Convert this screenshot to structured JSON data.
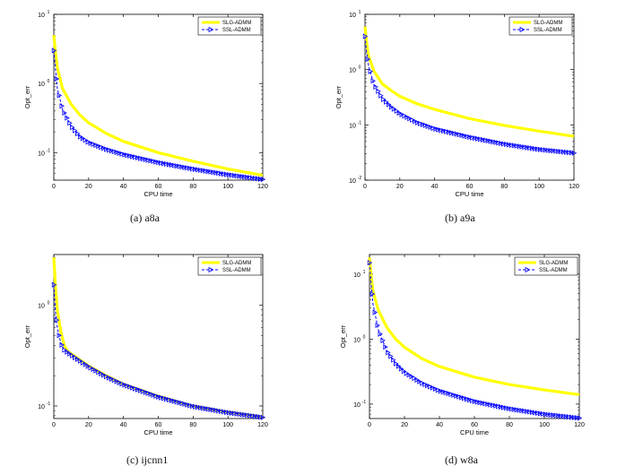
{
  "chart_data": [
    {
      "type": "line",
      "panel": "(a)",
      "caption": "(a)  a8a",
      "xlabel": "CPU time",
      "ylabel": "Opt_err",
      "yscale": "log",
      "xlim": [
        0,
        120
      ],
      "ylim": [
        0.04,
        10
      ],
      "xticks": [
        0,
        20,
        40,
        60,
        80,
        100,
        120
      ],
      "yticks": [
        0.1,
        1,
        10
      ],
      "ytick_labels": [
        [
          "10",
          "-1"
        ],
        [
          "10",
          "0"
        ],
        [
          "10",
          "1"
        ]
      ],
      "legend_position": "top-right",
      "series": [
        {
          "name": "SLG-ADMM",
          "color": "#ffff00",
          "marker": "solid-line",
          "x": [
            0,
            1,
            2,
            5,
            10,
            15,
            20,
            30,
            40,
            60,
            80,
            100,
            120
          ],
          "y": [
            5.0,
            2.8,
            1.7,
            0.85,
            0.5,
            0.35,
            0.27,
            0.19,
            0.145,
            0.1,
            0.075,
            0.058,
            0.047
          ]
        },
        {
          "name": "SSL-ADMM",
          "color": "#0000ff",
          "marker": "triangle",
          "x": [
            0,
            1,
            2,
            5,
            10,
            15,
            20,
            30,
            40,
            60,
            80,
            100,
            120
          ],
          "y": [
            3.0,
            1.6,
            0.85,
            0.42,
            0.24,
            0.17,
            0.14,
            0.112,
            0.094,
            0.072,
            0.058,
            0.048,
            0.041
          ]
        }
      ]
    },
    {
      "type": "line",
      "panel": "(b)",
      "caption": "(b)  a9a",
      "xlabel": "CPU time",
      "ylabel": "Opt_err",
      "yscale": "log",
      "xlim": [
        0,
        120
      ],
      "ylim": [
        0.01,
        10
      ],
      "xticks": [
        0,
        20,
        40,
        60,
        80,
        100,
        120
      ],
      "yticks": [
        0.01,
        0.1,
        1,
        10
      ],
      "ytick_labels": [
        [
          "10",
          "-2"
        ],
        [
          "10",
          "-1"
        ],
        [
          "10",
          "0"
        ],
        [
          "10",
          "1"
        ]
      ],
      "legend_position": "top-right",
      "series": [
        {
          "name": "SLG-ADMM",
          "color": "#ffff00",
          "marker": "solid-line",
          "x": [
            0,
            1,
            2,
            5,
            10,
            15,
            20,
            30,
            40,
            60,
            80,
            100,
            120
          ],
          "y": [
            6.0,
            3.0,
            1.8,
            0.95,
            0.55,
            0.42,
            0.33,
            0.24,
            0.19,
            0.13,
            0.098,
            0.077,
            0.062
          ]
        },
        {
          "name": "SSL-ADMM",
          "color": "#0000ff",
          "marker": "triangle",
          "x": [
            0,
            1,
            2,
            5,
            10,
            15,
            20,
            30,
            40,
            60,
            80,
            100,
            120
          ],
          "y": [
            4.0,
            2.0,
            1.2,
            0.55,
            0.3,
            0.21,
            0.16,
            0.11,
            0.085,
            0.06,
            0.045,
            0.036,
            0.031
          ]
        }
      ]
    },
    {
      "type": "line",
      "panel": "(c)",
      "caption": "(c)  ijcnn1",
      "xlabel": "CPU time",
      "ylabel": "Opt_err",
      "yscale": "log",
      "xlim": [
        0,
        120
      ],
      "ylim": [
        0.075,
        3.2
      ],
      "xticks": [
        0,
        20,
        40,
        60,
        80,
        100,
        120
      ],
      "yticks": [
        0.1,
        1
      ],
      "ytick_labels": [
        [
          "10",
          "-1"
        ],
        [
          "10",
          "0"
        ]
      ],
      "legend_position": "top-right",
      "series": [
        {
          "name": "SLG-ADMM",
          "color": "#ffff00",
          "marker": "solid-line",
          "x": [
            0,
            1,
            2,
            4,
            6,
            8,
            10,
            20,
            30,
            40,
            60,
            80,
            100,
            120
          ],
          "y": [
            3.0,
            1.5,
            0.9,
            0.55,
            0.4,
            0.35,
            0.33,
            0.25,
            0.2,
            0.165,
            0.125,
            0.1,
            0.087,
            0.078
          ]
        },
        {
          "name": "SSL-ADMM",
          "color": "#0000ff",
          "marker": "triangle",
          "x": [
            0,
            1,
            2,
            4,
            6,
            8,
            10,
            20,
            30,
            40,
            60,
            80,
            100,
            120
          ],
          "y": [
            1.6,
            0.85,
            0.6,
            0.42,
            0.36,
            0.34,
            0.32,
            0.245,
            0.196,
            0.163,
            0.123,
            0.099,
            0.086,
            0.077
          ]
        }
      ]
    },
    {
      "type": "line",
      "panel": "(d)",
      "caption": "(d)  w8a",
      "xlabel": "CPU time",
      "ylabel": "Opt_err",
      "yscale": "log",
      "xlim": [
        0,
        120
      ],
      "ylim": [
        0.06,
        20
      ],
      "xticks": [
        0,
        20,
        40,
        60,
        80,
        100,
        120
      ],
      "yticks": [
        0.1,
        1,
        10
      ],
      "ytick_labels": [
        [
          "10",
          "-1"
        ],
        [
          "10",
          "0"
        ],
        [
          "10",
          "1"
        ]
      ],
      "legend_position": "top-right",
      "series": [
        {
          "name": "SLG-ADMM",
          "color": "#ffff00",
          "marker": "solid-line",
          "x": [
            0,
            1,
            2,
            5,
            10,
            15,
            20,
            30,
            40,
            60,
            80,
            100,
            120
          ],
          "y": [
            18.0,
            9.0,
            5.5,
            2.8,
            1.5,
            1.0,
            0.75,
            0.5,
            0.38,
            0.26,
            0.2,
            0.165,
            0.14
          ]
        },
        {
          "name": "SSL-ADMM",
          "color": "#0000ff",
          "marker": "triangle",
          "x": [
            0,
            1,
            2,
            5,
            10,
            15,
            20,
            30,
            40,
            60,
            80,
            100,
            120
          ],
          "y": [
            15.0,
            7.0,
            3.5,
            1.4,
            0.65,
            0.42,
            0.31,
            0.21,
            0.16,
            0.11,
            0.085,
            0.07,
            0.061
          ]
        }
      ]
    }
  ]
}
